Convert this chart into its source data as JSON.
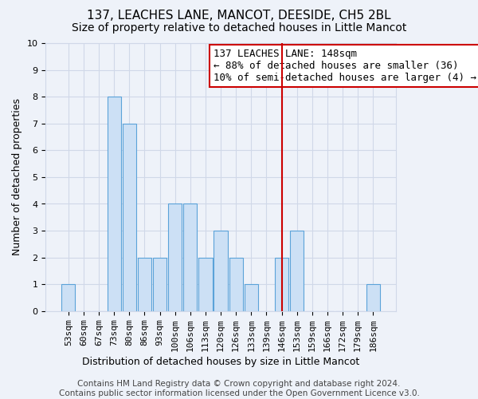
{
  "title": "137, LEACHES LANE, MANCOT, DEESIDE, CH5 2BL",
  "subtitle": "Size of property relative to detached houses in Little Mancot",
  "xlabel": "Distribution of detached houses by size in Little Mancot",
  "ylabel": "Number of detached properties",
  "categories": [
    "53sqm",
    "60sqm",
    "67sqm",
    "73sqm",
    "80sqm",
    "86sqm",
    "93sqm",
    "100sqm",
    "106sqm",
    "113sqm",
    "120sqm",
    "126sqm",
    "133sqm",
    "139sqm",
    "146sqm",
    "153sqm",
    "159sqm",
    "166sqm",
    "172sqm",
    "179sqm",
    "186sqm"
  ],
  "values": [
    1,
    0,
    0,
    8,
    7,
    2,
    2,
    4,
    4,
    2,
    3,
    2,
    1,
    0,
    2,
    3,
    0,
    0,
    0,
    0,
    1
  ],
  "bar_color": "#cce0f5",
  "bar_edge_color": "#5ba3d9",
  "vline_index": 14,
  "vline_color": "#cc0000",
  "ylim": [
    0,
    10
  ],
  "yticks": [
    0,
    1,
    2,
    3,
    4,
    5,
    6,
    7,
    8,
    9,
    10
  ],
  "grid_color": "#d0d8e8",
  "background_color": "#eef2f9",
  "annotation_text": "137 LEACHES LANE: 148sqm\n← 88% of detached houses are smaller (36)\n10% of semi-detached houses are larger (4) →",
  "annotation_box_color": "#ffffff",
  "annotation_box_edge_color": "#cc0000",
  "footer": "Contains HM Land Registry data © Crown copyright and database right 2024.\nContains public sector information licensed under the Open Government Licence v3.0.",
  "title_fontsize": 11,
  "subtitle_fontsize": 10,
  "xlabel_fontsize": 9,
  "ylabel_fontsize": 9,
  "tick_fontsize": 8,
  "annotation_fontsize": 9,
  "footer_fontsize": 7.5
}
